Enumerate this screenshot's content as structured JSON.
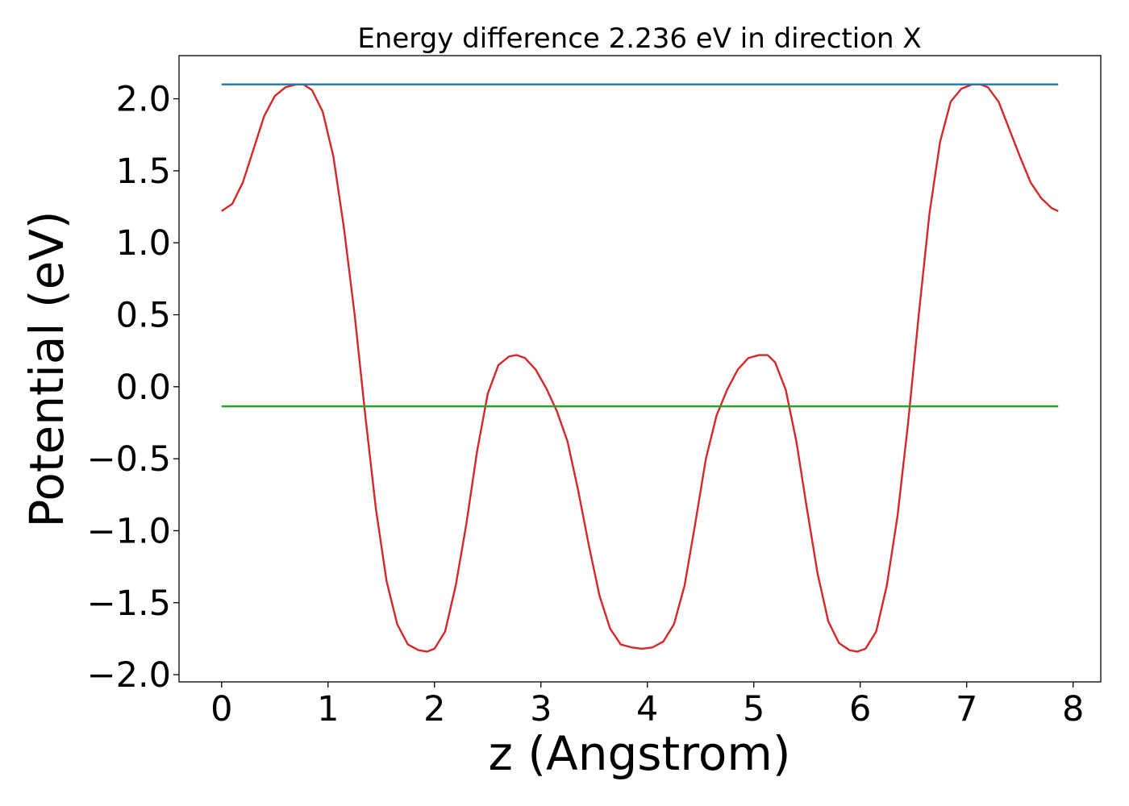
{
  "chart_data": {
    "type": "line",
    "title": "Energy difference 2.236 eV in direction X",
    "xlabel": "z (Angstrom)",
    "ylabel": "Potential (eV)",
    "xlim": [
      -0.4,
      8.26
    ],
    "ylim": [
      -2.05,
      2.3
    ],
    "xticks": [
      0,
      1,
      2,
      3,
      4,
      5,
      6,
      7,
      8
    ],
    "xtick_labels": [
      "0",
      "1",
      "2",
      "3",
      "4",
      "5",
      "6",
      "7",
      "8"
    ],
    "yticks": [
      -2.0,
      -1.5,
      -1.0,
      -0.5,
      0.0,
      0.5,
      1.0,
      1.5,
      2.0
    ],
    "ytick_labels": [
      "−2.0",
      "−1.5",
      "−1.0",
      "−0.5",
      "0.0",
      "0.5",
      "1.0",
      "1.5",
      "2.0"
    ],
    "grid": false,
    "series": [
      {
        "color": "#d62728",
        "x": [
          0.0,
          0.1,
          0.2,
          0.3,
          0.4,
          0.5,
          0.6,
          0.7,
          0.77,
          0.85,
          0.95,
          1.05,
          1.15,
          1.25,
          1.35,
          1.45,
          1.55,
          1.65,
          1.75,
          1.85,
          1.93,
          2.0,
          2.1,
          2.2,
          2.3,
          2.4,
          2.5,
          2.6,
          2.7,
          2.77,
          2.85,
          2.95,
          3.05,
          3.15,
          3.25,
          3.35,
          3.45,
          3.55,
          3.65,
          3.75,
          3.85,
          3.95,
          4.05,
          4.15,
          4.25,
          4.35,
          4.45,
          4.55,
          4.65,
          4.75,
          4.85,
          4.95,
          5.05,
          5.13,
          5.2,
          5.3,
          5.4,
          5.5,
          5.6,
          5.7,
          5.8,
          5.9,
          5.97,
          6.05,
          6.15,
          6.25,
          6.35,
          6.45,
          6.55,
          6.65,
          6.75,
          6.85,
          6.95,
          7.05,
          7.13,
          7.2,
          7.3,
          7.4,
          7.5,
          7.6,
          7.7,
          7.8,
          7.86
        ],
        "y": [
          1.22,
          1.27,
          1.42,
          1.65,
          1.88,
          2.02,
          2.08,
          2.1,
          2.1,
          2.06,
          1.91,
          1.6,
          1.1,
          0.5,
          -0.2,
          -0.85,
          -1.35,
          -1.65,
          -1.79,
          -1.83,
          -1.84,
          -1.82,
          -1.7,
          -1.38,
          -0.95,
          -0.45,
          -0.05,
          0.15,
          0.21,
          0.22,
          0.2,
          0.12,
          -0.01,
          -0.17,
          -0.38,
          -0.72,
          -1.1,
          -1.45,
          -1.68,
          -1.79,
          -1.81,
          -1.82,
          -1.81,
          -1.77,
          -1.65,
          -1.38,
          -0.95,
          -0.5,
          -0.2,
          -0.02,
          0.12,
          0.2,
          0.22,
          0.22,
          0.17,
          -0.02,
          -0.38,
          -0.85,
          -1.3,
          -1.63,
          -1.78,
          -1.83,
          -1.84,
          -1.82,
          -1.7,
          -1.38,
          -0.9,
          -0.25,
          0.5,
          1.2,
          1.7,
          1.98,
          2.07,
          2.1,
          2.1,
          2.08,
          1.98,
          1.79,
          1.6,
          1.42,
          1.31,
          1.24,
          1.22
        ]
      },
      {
        "color": "#1f77b4",
        "x": [
          0.0,
          7.86
        ],
        "y": [
          2.1,
          2.1
        ]
      },
      {
        "color": "#2ca02c",
        "x": [
          0.0,
          7.86
        ],
        "y": [
          -0.136,
          -0.136
        ]
      }
    ]
  }
}
